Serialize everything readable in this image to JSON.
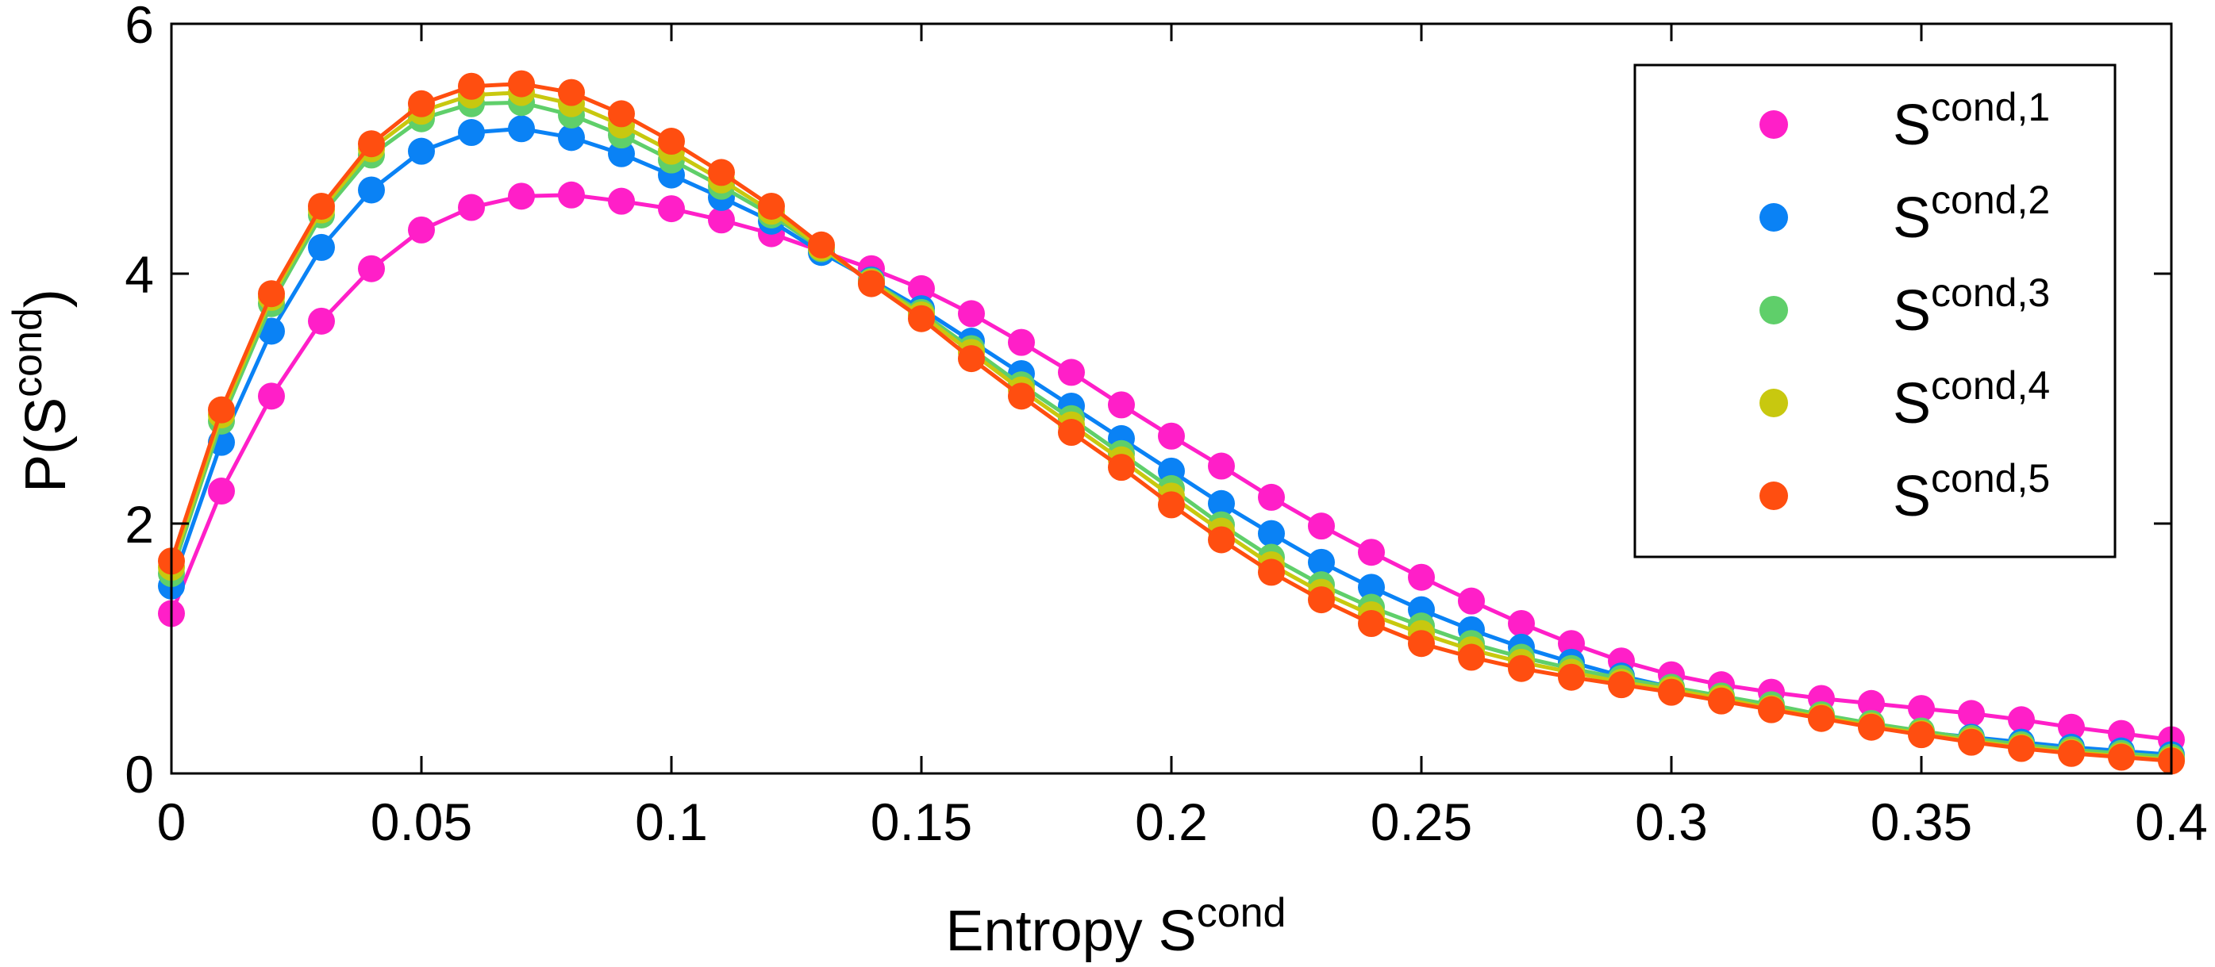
{
  "chart_data": {
    "type": "line",
    "title": "",
    "xlabel": "Entropy S",
    "xlabel_sup": "cond",
    "ylabel": "P(S",
    "ylabel_sup": "cond",
    "ylabel_close": ")",
    "xlim": [
      0,
      0.4
    ],
    "ylim": [
      0,
      6
    ],
    "xticks": [
      0,
      0.05,
      0.1,
      0.15,
      0.2,
      0.25,
      0.3,
      0.35,
      0.4
    ],
    "xtick_labels": [
      "0",
      "0.05",
      "0.1",
      "0.15",
      "0.2",
      "0.25",
      "0.3",
      "0.35",
      "0.4"
    ],
    "yticks": [
      0,
      2,
      4,
      6
    ],
    "ytick_labels": [
      "0",
      "2",
      "4",
      "6"
    ],
    "grid": false,
    "legend_position": "top-right",
    "x": [
      0,
      0.01,
      0.02,
      0.03,
      0.04,
      0.05,
      0.06,
      0.07,
      0.08,
      0.09,
      0.1,
      0.11,
      0.12,
      0.13,
      0.14,
      0.15,
      0.16,
      0.17,
      0.18,
      0.19,
      0.2,
      0.21,
      0.22,
      0.23,
      0.24,
      0.25,
      0.26,
      0.27,
      0.28,
      0.29,
      0.3,
      0.31,
      0.32,
      0.33,
      0.34,
      0.35,
      0.36,
      0.37,
      0.38,
      0.39,
      0.4
    ],
    "series": [
      {
        "name": "S",
        "sup": "cond,1",
        "color": "#ff1fc8",
        "values": [
          1.28,
          2.26,
          3.02,
          3.62,
          4.04,
          4.35,
          4.53,
          4.62,
          4.63,
          4.58,
          4.52,
          4.43,
          4.32,
          4.18,
          4.04,
          3.88,
          3.68,
          3.45,
          3.21,
          2.95,
          2.7,
          2.46,
          2.21,
          1.98,
          1.77,
          1.57,
          1.38,
          1.2,
          1.04,
          0.9,
          0.79,
          0.71,
          0.65,
          0.6,
          0.56,
          0.52,
          0.48,
          0.43,
          0.37,
          0.32,
          0.27
        ]
      },
      {
        "name": "S",
        "sup": "cond,2",
        "color": "#0a82f5",
        "values": [
          1.5,
          2.65,
          3.54,
          4.21,
          4.67,
          4.98,
          5.13,
          5.16,
          5.09,
          4.96,
          4.79,
          4.61,
          4.42,
          4.17,
          3.95,
          3.72,
          3.46,
          3.2,
          2.94,
          2.68,
          2.42,
          2.16,
          1.92,
          1.69,
          1.49,
          1.31,
          1.15,
          1.01,
          0.89,
          0.78,
          0.69,
          0.61,
          0.53,
          0.46,
          0.39,
          0.33,
          0.29,
          0.25,
          0.21,
          0.18,
          0.15
        ]
      },
      {
        "name": "S",
        "sup": "cond,3",
        "color": "#5fcf6a",
        "values": [
          1.6,
          2.82,
          3.76,
          4.47,
          4.95,
          5.24,
          5.36,
          5.37,
          5.27,
          5.11,
          4.91,
          4.7,
          4.47,
          4.2,
          3.94,
          3.69,
          3.4,
          3.11,
          2.84,
          2.56,
          2.28,
          1.99,
          1.73,
          1.51,
          1.33,
          1.18,
          1.04,
          0.93,
          0.84,
          0.76,
          0.69,
          0.62,
          0.55,
          0.47,
          0.4,
          0.34,
          0.28,
          0.23,
          0.19,
          0.16,
          0.13
        ]
      },
      {
        "name": "S",
        "sup": "cond,4",
        "color": "#c8c80f",
        "values": [
          1.65,
          2.87,
          3.81,
          4.51,
          5.0,
          5.3,
          5.43,
          5.45,
          5.36,
          5.19,
          4.98,
          4.75,
          4.5,
          4.21,
          3.93,
          3.67,
          3.37,
          3.07,
          2.79,
          2.51,
          2.22,
          1.94,
          1.67,
          1.45,
          1.27,
          1.12,
          0.99,
          0.89,
          0.81,
          0.73,
          0.67,
          0.6,
          0.52,
          0.45,
          0.38,
          0.32,
          0.26,
          0.21,
          0.17,
          0.14,
          0.11
        ]
      },
      {
        "name": "S",
        "sup": "cond,5",
        "color": "#ff4e10",
        "values": [
          1.7,
          2.91,
          3.84,
          4.54,
          5.04,
          5.36,
          5.5,
          5.52,
          5.45,
          5.28,
          5.06,
          4.81,
          4.54,
          4.23,
          3.92,
          3.64,
          3.32,
          3.02,
          2.73,
          2.45,
          2.15,
          1.87,
          1.61,
          1.39,
          1.2,
          1.04,
          0.93,
          0.84,
          0.77,
          0.71,
          0.65,
          0.58,
          0.51,
          0.44,
          0.37,
          0.31,
          0.25,
          0.2,
          0.16,
          0.13,
          0.1
        ]
      }
    ]
  }
}
